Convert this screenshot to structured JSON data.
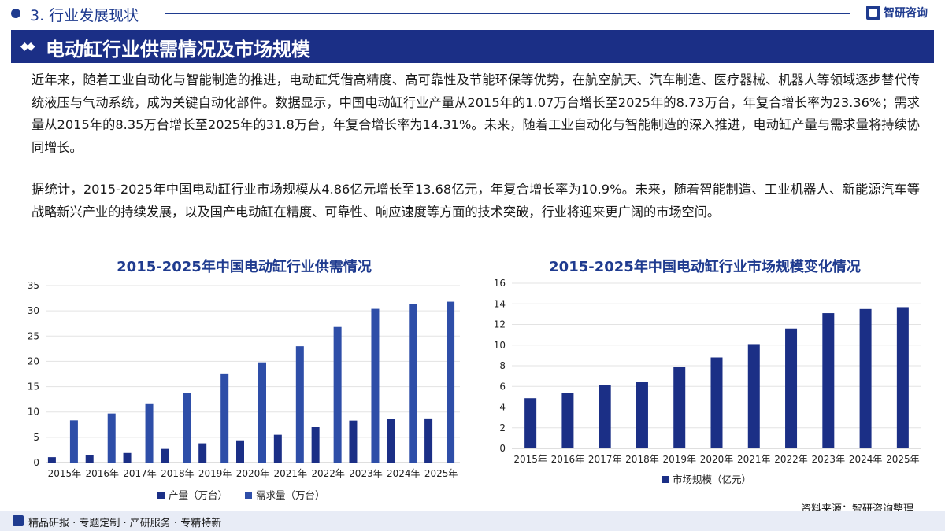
{
  "section": {
    "title": "3. 行业发展现状"
  },
  "brand": {
    "name": "智研咨询"
  },
  "banner": {
    "title": "电动缸行业供需情况及市场规模"
  },
  "paragraphs": [
    "近年来，随着工业自动化与智能制造的推进，电动缸凭借高精度、高可靠性及节能环保等优势，在航空航天、汽车制造、医疗器械、机器人等领域逐步替代传统液压与气动系统，成为关键自动化部件。数据显示，中国电动缸行业产量从2015年的1.07万台增长至2025年的8.73万台，年复合增长率为23.36%；需求量从2015年的8.35万台增长至2025年的31.8万台，年复合增长率为14.31%。未来，随着工业自动化与智能制造的深入推进，电动缸产量与需求量将持续协同增长。",
    "据统计，2015-2025年中国电动缸行业市场规模从4.86亿元增长至13.68亿元，年复合增长率为10.9%。未来，随着智能制造、工业机器人、新能源汽车等战略新兴产业的持续发展，以及国产电动缸在精度、可靠性、响应速度等方面的技术突破，行业将迎来更广阔的市场空间。"
  ],
  "chart_data": [
    {
      "type": "bar",
      "title": "2015-2025年中国电动缸行业供需情况",
      "categories": [
        "2015年",
        "2016年",
        "2017年",
        "2018年",
        "2019年",
        "2020年",
        "2021年",
        "2022年",
        "2023年",
        "2024年",
        "2025年"
      ],
      "series": [
        {
          "name": "产量（万台）",
          "color": "#1b2f86",
          "values": [
            1.07,
            1.5,
            1.9,
            2.7,
            3.8,
            4.4,
            5.5,
            7.0,
            8.3,
            8.6,
            8.73
          ]
        },
        {
          "name": "需求量（万台）",
          "color": "#2e4ea8",
          "values": [
            8.35,
            9.7,
            11.7,
            13.8,
            17.6,
            19.8,
            23.0,
            26.8,
            30.4,
            31.3,
            31.8
          ]
        }
      ],
      "ylim": [
        0,
        35
      ],
      "yticks": [
        0,
        5,
        10,
        15,
        20,
        25,
        30,
        35
      ],
      "legend": "bottom"
    },
    {
      "type": "bar",
      "title": "2015-2025年中国电动缸行业市场规模变化情况",
      "categories": [
        "2015年",
        "2016年",
        "2017年",
        "2018年",
        "2019年",
        "2020年",
        "2021年",
        "2022年",
        "2023年",
        "2024年",
        "2025年"
      ],
      "series": [
        {
          "name": "市场规模（亿元）",
          "color": "#1b2f86",
          "values": [
            4.86,
            5.35,
            6.1,
            6.4,
            7.9,
            8.8,
            10.1,
            11.6,
            13.1,
            13.5,
            13.68
          ]
        }
      ],
      "ylim": [
        0,
        16
      ],
      "yticks": [
        0,
        2,
        4,
        6,
        8,
        10,
        12,
        14,
        16
      ],
      "legend": "bottom"
    }
  ],
  "source": {
    "text": "资料来源：智研咨询整理"
  },
  "footer": {
    "text": "精品研报 · 专题定制 · 产研服务 · 专精特新"
  }
}
